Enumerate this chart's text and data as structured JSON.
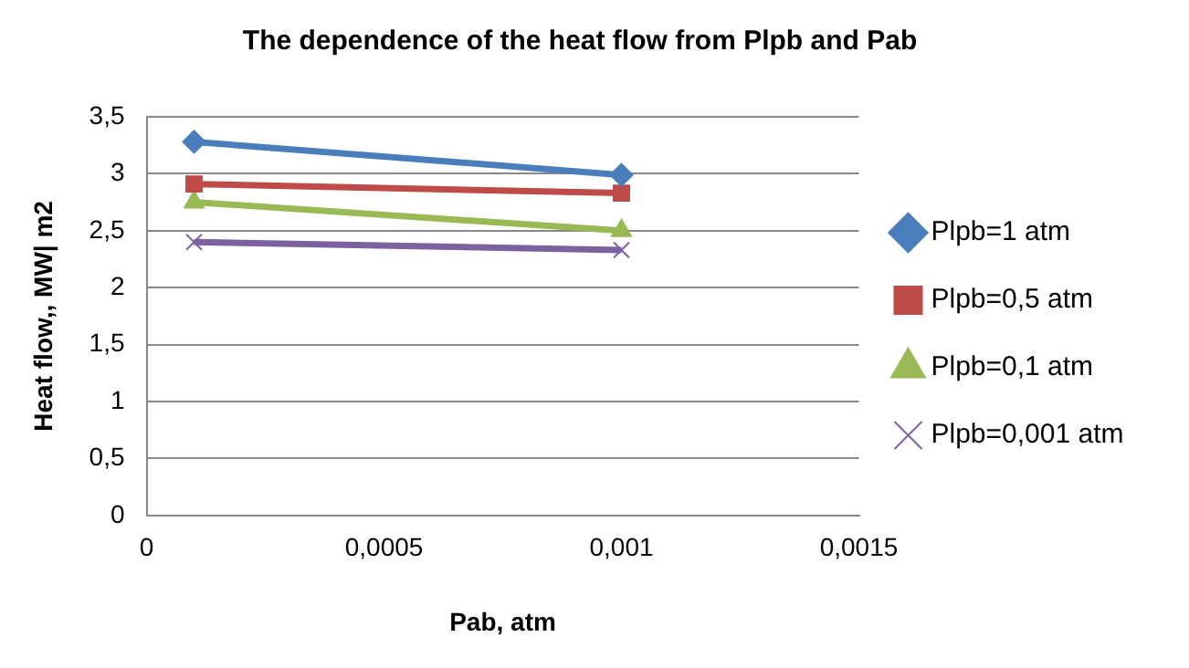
{
  "chart_data": {
    "type": "line",
    "title": "The dependence of the heat flow from Plpb and Pab",
    "xlabel": "Pab, atm",
    "ylabel": "Heat flow,, MW| m2",
    "x": [
      0.0001,
      0.001
    ],
    "series": [
      {
        "name": "Plpb=1 atm",
        "color": "#4a7ebb",
        "marker": "diamond",
        "values": [
          3.28,
          2.99
        ]
      },
      {
        "name": "Plpb=0,5 atm",
        "color": "#be4b48",
        "marker": "square",
        "values": [
          2.91,
          2.83
        ]
      },
      {
        "name": "Plpb=0,1 atm",
        "color": "#98b954",
        "marker": "triangle",
        "values": [
          2.75,
          2.5
        ]
      },
      {
        "name": "Plpb=0,001 atm",
        "color": "#7d60a0",
        "marker": "cross",
        "values": [
          2.4,
          2.33
        ]
      }
    ],
    "xlim": [
      0,
      0.0015
    ],
    "xticks": [
      0,
      {
        "value": 0.0005,
        "label": "0,0005"
      },
      {
        "value": 0.001,
        "label": "0,001"
      },
      {
        "value": 0.0015,
        "label": "0,0015"
      }
    ],
    "ylim": [
      0,
      3.5
    ],
    "yticks": [
      0,
      {
        "value": 0.5,
        "label": "0,5"
      },
      1,
      {
        "value": 1.5,
        "label": "1,5"
      },
      2,
      {
        "value": 2.5,
        "label": "2,5"
      },
      3,
      {
        "value": 3.5,
        "label": "3,5"
      }
    ],
    "grid": "y",
    "legend": "right",
    "line_style": "solid"
  }
}
